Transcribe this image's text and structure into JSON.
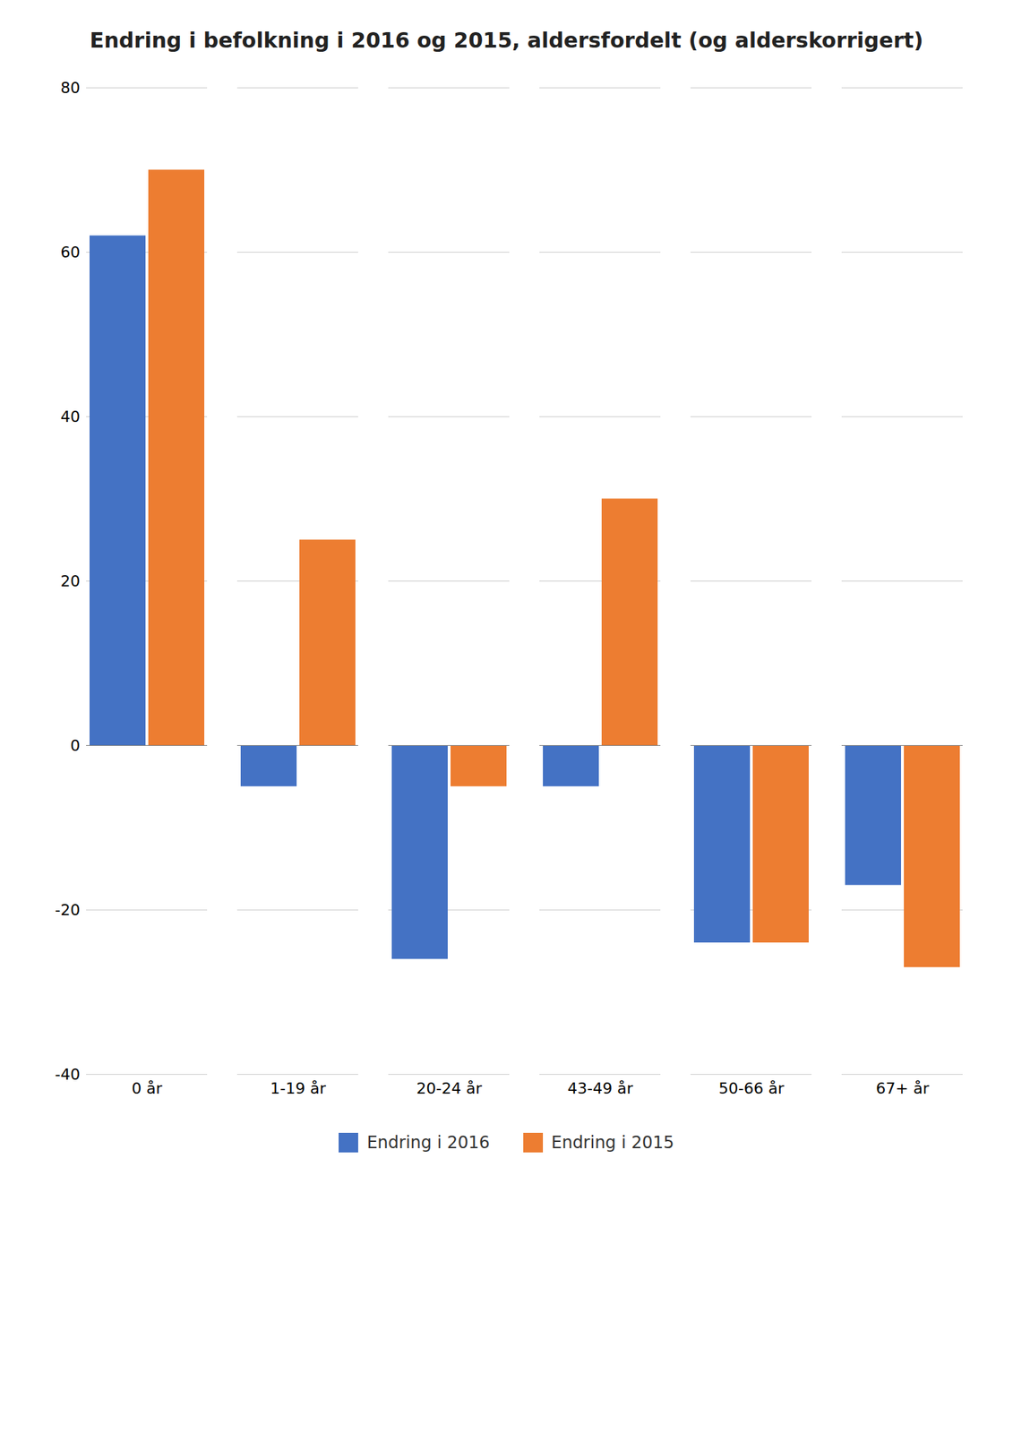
{
  "chart_data": {
    "type": "bar",
    "title": "Endring i befolkning i 2016 og 2015, aldersfordelt (og alderskorrigert)",
    "categories": [
      "0 år",
      "1-19 år",
      "20-24 år",
      "43-49 år",
      "50-66 år",
      "67+ år"
    ],
    "series": [
      {
        "name": "Endring i 2016",
        "color": "#4472C4",
        "values": [
          62,
          -5,
          -26,
          -5,
          -24,
          -17
        ]
      },
      {
        "name": "Endring i 2015",
        "color": "#ED7D31",
        "values": [
          70,
          25,
          -5,
          30,
          -24,
          -27
        ]
      }
    ],
    "ylim": [
      -40,
      80
    ],
    "yticks": [
      -40,
      -20,
      0,
      20,
      40,
      60,
      80
    ],
    "grid": true,
    "legend": "bottom"
  }
}
